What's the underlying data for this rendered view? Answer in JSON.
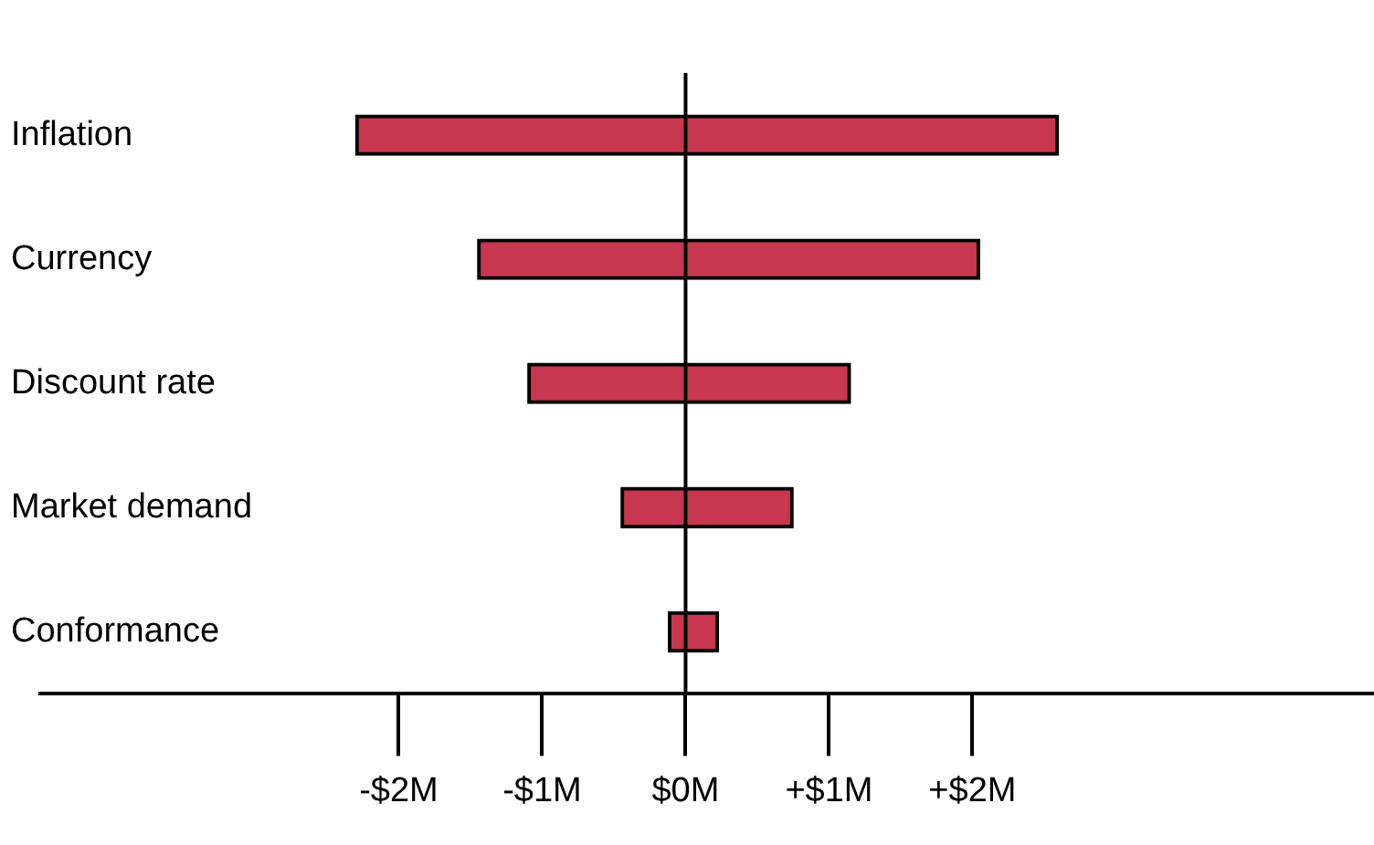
{
  "chart_data": {
    "type": "bar",
    "orientation": "horizontal",
    "categories": [
      "Inflation",
      "Currency",
      "Discount rate",
      "Market demand",
      "Conformance"
    ],
    "series": [
      {
        "color": "#c8374f",
        "base": [
          -2.3,
          -1.45,
          -1.1,
          -0.45,
          -0.12
        ],
        "values": [
          4.9,
          3.5,
          2.25,
          1.2,
          0.35
        ]
      }
    ],
    "xlim": [
      -4.5,
      4.8
    ],
    "xticks": [
      {
        "value": -2,
        "label": "-$2M"
      },
      {
        "value": -1,
        "label": "-$1M"
      },
      {
        "value": 0,
        "label": "$0M"
      },
      {
        "value": 1,
        "label": "+$1M"
      },
      {
        "value": 2,
        "label": "+$2M"
      }
    ],
    "grid": false,
    "legend": false,
    "ref_lines": [
      {
        "axis": "x",
        "value": 0,
        "color": "#000000"
      }
    ]
  }
}
